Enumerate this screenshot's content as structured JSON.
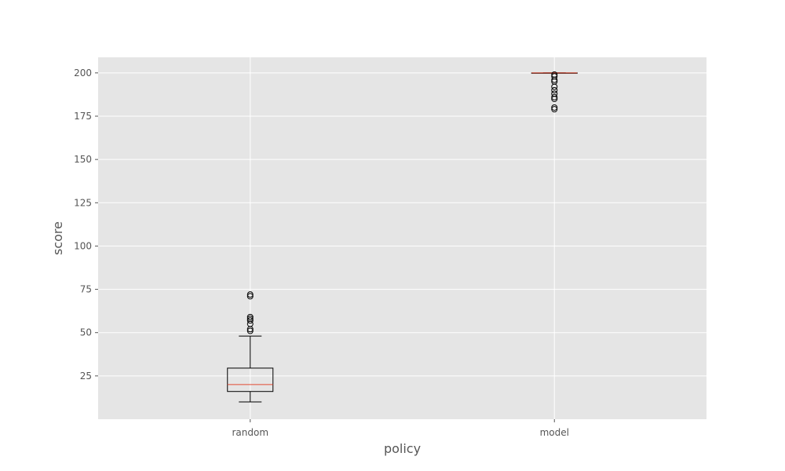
{
  "chart_data": {
    "type": "boxplot",
    "title": "",
    "xlabel": "policy",
    "ylabel": "score",
    "ylim": [
      0,
      209
    ],
    "yticks": [
      25,
      50,
      75,
      100,
      125,
      150,
      175,
      200
    ],
    "grid": true,
    "background": "#e5e5e5",
    "grid_color": "#ffffff",
    "box_color": "#000000",
    "median_color": "#e24a33",
    "categories": [
      "random",
      "model"
    ],
    "boxes": [
      {
        "name": "random",
        "whisker_low": 10,
        "q1": 16,
        "median": 20,
        "q3": 29.5,
        "whisker_high": 48,
        "outliers": [
          51,
          52,
          55,
          57,
          58,
          59,
          71,
          72
        ]
      },
      {
        "name": "model",
        "whisker_low": 200,
        "q1": 200,
        "median": 200,
        "q3": 200,
        "whisker_high": 200,
        "outliers": [
          180,
          179,
          185,
          186,
          188,
          190,
          192,
          195,
          196,
          198,
          199
        ]
      }
    ]
  }
}
